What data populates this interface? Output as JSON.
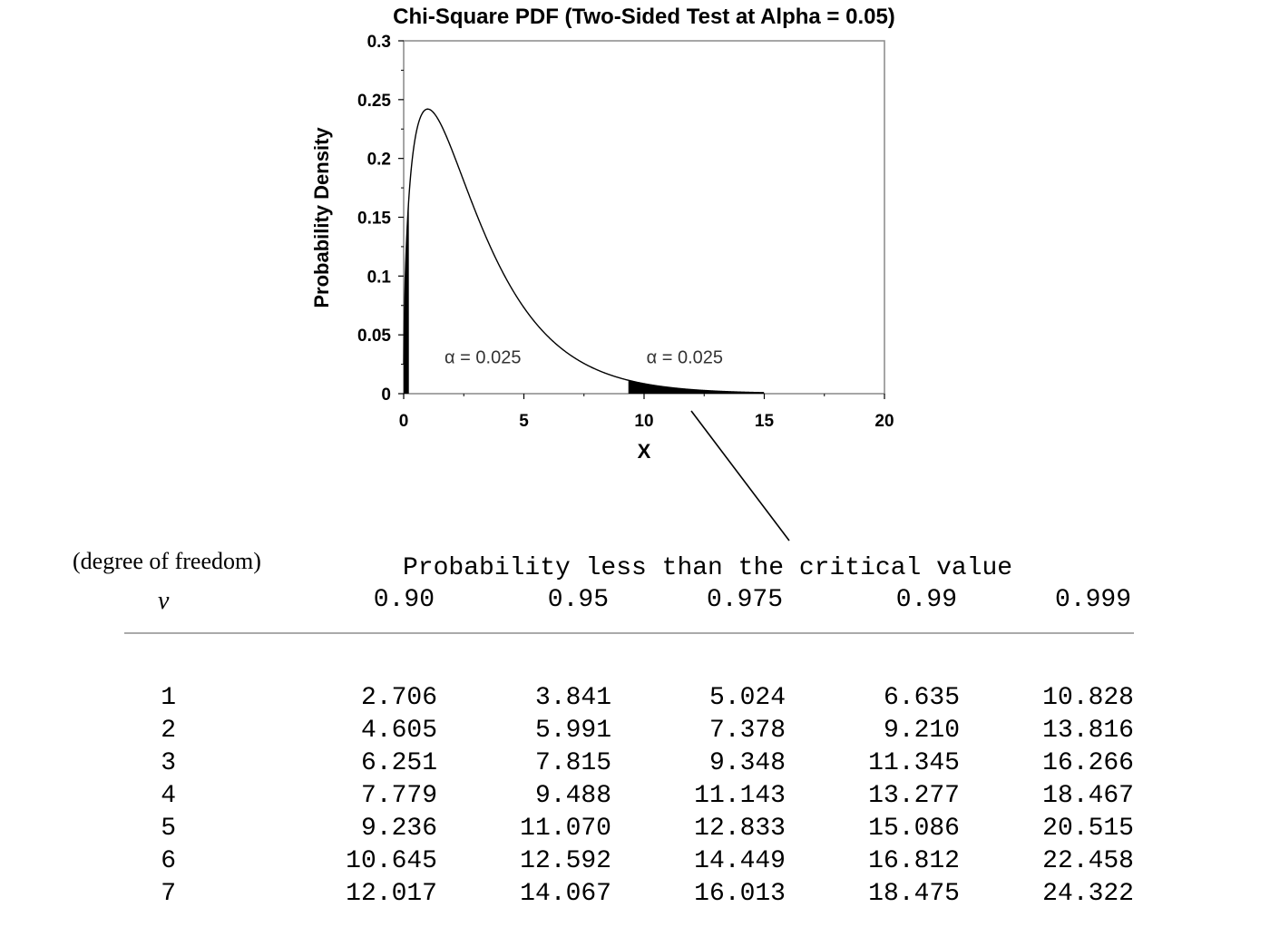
{
  "chart_data": {
    "type": "area",
    "title": "Chi-Square PDF (Two-Sided Test at Alpha = 0.05)",
    "xlabel": "X",
    "ylabel": "Probability Density",
    "xlim": [
      0,
      20
    ],
    "ylim": [
      0,
      0.3
    ],
    "x_ticks": [
      "0",
      "5",
      "10",
      "15",
      "20"
    ],
    "y_ticks": [
      "0",
      "0.05",
      "0.1",
      "0.15",
      "0.2",
      "0.25",
      "0.3"
    ],
    "grid": false,
    "curve_end_x": 15,
    "degrees_of_freedom": 3,
    "left_tail_critical_x": 0.216,
    "right_tail_critical_x": 9.348,
    "annotations": [
      {
        "text": "α  =  0.025",
        "x": 1.7,
        "y": 0.026
      },
      {
        "text": "α  =  0.025",
        "x": 10.1,
        "y": 0.026
      }
    ]
  },
  "table": {
    "dof_label": "(degree of freedom)",
    "nu_symbol": "ν",
    "caption": "Probability less than the critical value",
    "columns": [
      "0.90",
      "0.95",
      "0.975",
      "0.99",
      "0.999"
    ],
    "rows": [
      {
        "df": "1",
        "values": [
          "2.706",
          "3.841",
          "5.024",
          "6.635",
          "10.828"
        ]
      },
      {
        "df": "2",
        "values": [
          "4.605",
          "5.991",
          "7.378",
          "9.210",
          "13.816"
        ]
      },
      {
        "df": "3",
        "values": [
          "6.251",
          "7.815",
          "9.348",
          "11.345",
          "16.266"
        ]
      },
      {
        "df": "4",
        "values": [
          "7.779",
          "9.488",
          "11.143",
          "13.277",
          "18.467"
        ]
      },
      {
        "df": "5",
        "values": [
          "9.236",
          "11.070",
          "12.833",
          "15.086",
          "20.515"
        ]
      },
      {
        "df": "6",
        "values": [
          "10.645",
          "12.592",
          "14.449",
          "16.812",
          "22.458"
        ]
      },
      {
        "df": "7",
        "values": [
          "12.017",
          "14.067",
          "16.013",
          "18.475",
          "24.322"
        ]
      }
    ]
  }
}
